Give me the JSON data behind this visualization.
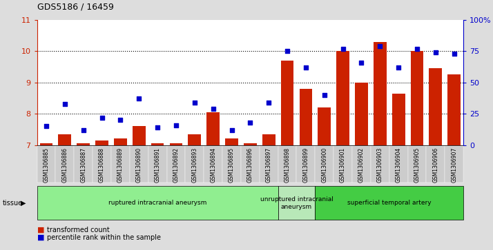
{
  "title": "GDS5186 / 16459",
  "samples": [
    "GSM1306885",
    "GSM1306886",
    "GSM1306887",
    "GSM1306888",
    "GSM1306889",
    "GSM1306890",
    "GSM1306891",
    "GSM1306892",
    "GSM1306893",
    "GSM1306894",
    "GSM1306895",
    "GSM1306896",
    "GSM1306897",
    "GSM1306898",
    "GSM1306899",
    "GSM1306900",
    "GSM1306901",
    "GSM1306902",
    "GSM1306903",
    "GSM1306904",
    "GSM1306905",
    "GSM1306906",
    "GSM1306907"
  ],
  "transformed_count": [
    7.05,
    7.35,
    7.05,
    7.15,
    7.2,
    7.6,
    7.05,
    7.05,
    7.35,
    8.05,
    7.2,
    7.05,
    7.35,
    9.7,
    8.8,
    8.2,
    10.0,
    9.0,
    10.3,
    8.65,
    10.0,
    9.45,
    9.25
  ],
  "percentile_rank_pct": [
    15,
    33,
    12,
    22,
    20,
    37,
    14,
    16,
    34,
    29,
    12,
    18,
    34,
    75,
    62,
    40,
    77,
    66,
    79,
    62,
    77,
    74,
    73
  ],
  "ylim_left": [
    7,
    11
  ],
  "ylim_right": [
    0,
    100
  ],
  "yticks_left": [
    7,
    8,
    9,
    10,
    11
  ],
  "yticks_right": [
    0,
    25,
    50,
    75,
    100
  ],
  "groups": [
    {
      "label": "ruptured intracranial aneurysm",
      "start": 0,
      "end": 13,
      "color": "#90ee90"
    },
    {
      "label": "unruptured intracranial\naneurysm",
      "start": 13,
      "end": 15,
      "color": "#b8e8b8"
    },
    {
      "label": "superficial temporal artery",
      "start": 15,
      "end": 23,
      "color": "#44cc44"
    }
  ],
  "bar_color": "#cc2200",
  "dot_color": "#0000cc",
  "background_color": "#dddddd",
  "plot_bg": "#ffffff",
  "xtick_bg": "#cccccc",
  "left_axis_color": "#cc2200",
  "right_axis_color": "#0000cc"
}
